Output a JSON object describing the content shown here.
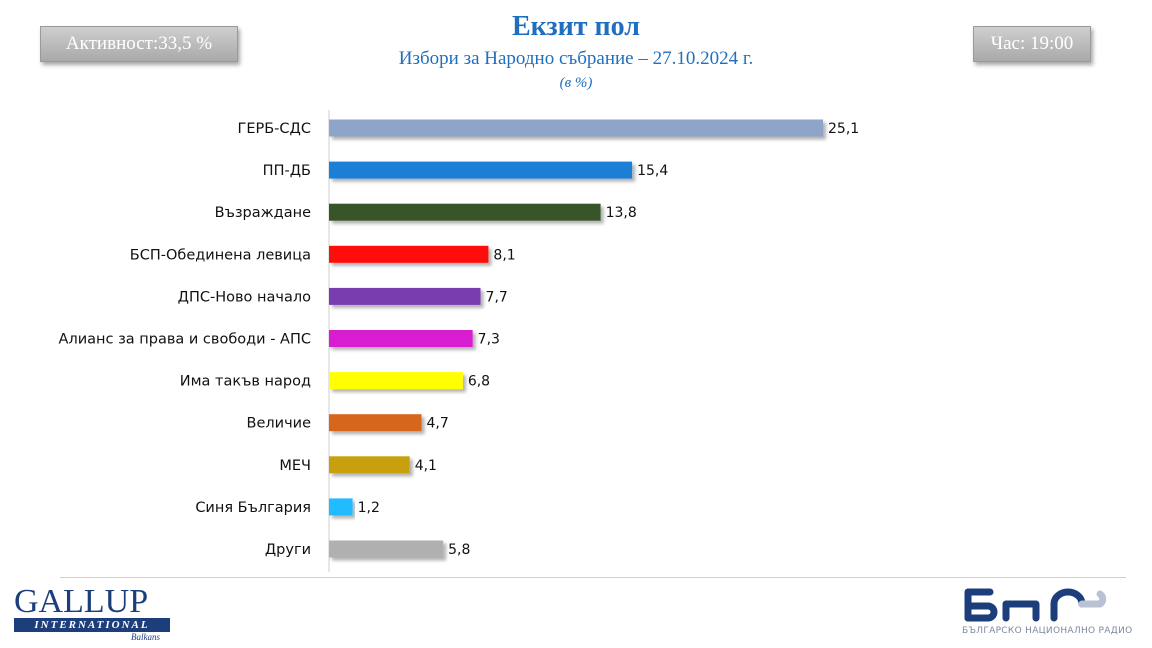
{
  "header": {
    "turnout": "Активност:33,5 %",
    "time": "Час: 19:00",
    "title": "Екзит пол",
    "subtitle": "Избори за Народно събрание – 27.10.2024 г.",
    "unit": "(в %)"
  },
  "chart_data": {
    "type": "bar",
    "orientation": "horizontal",
    "categories": [
      "ГЕРБ-СДС",
      "ПП-ДБ",
      "Възраждане",
      "БСП-Обединена левица",
      "ДПС-Ново начало",
      "Алианс за права и свободи - АПС",
      "Има такъв народ",
      "Величие",
      "МЕЧ",
      "Синя България",
      "Други"
    ],
    "values": [
      25.1,
      15.4,
      13.8,
      8.1,
      7.7,
      7.3,
      6.8,
      4.7,
      4.1,
      1.2,
      5.8
    ],
    "value_labels": [
      "25,1",
      "15,4",
      "13,8",
      "8,1",
      "7,7",
      "7,3",
      "6,8",
      "4,7",
      "4,1",
      "1,2",
      "5,8"
    ],
    "colors": [
      "#8ea4c8",
      "#1f7fd6",
      "#37542a",
      "#ff1010",
      "#7a3db0",
      "#d81fd0",
      "#ffff00",
      "#d6661c",
      "#c8a010",
      "#22bbff",
      "#b0b0b0"
    ],
    "xlim": [
      0,
      25.1
    ],
    "grid": false,
    "legend": "none"
  },
  "footer": {
    "gallup_main": "GALLUP",
    "gallup_band": "INTERNATIONAL",
    "gallup_sub": "Balkans",
    "bnr_sub": "БЪЛГАРСКО НАЦИОНАЛНО РАДИО"
  }
}
